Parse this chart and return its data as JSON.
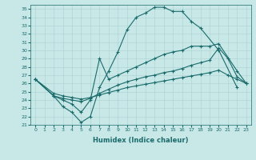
{
  "xlabel": "Humidex (Indice chaleur)",
  "ylabel": "",
  "xlim": [
    -0.5,
    23.5
  ],
  "ylim": [
    21,
    35.5
  ],
  "xticks": [
    0,
    1,
    2,
    3,
    4,
    5,
    6,
    7,
    8,
    9,
    10,
    11,
    12,
    13,
    14,
    15,
    16,
    17,
    18,
    19,
    20,
    21,
    22,
    23
  ],
  "yticks": [
    21,
    22,
    23,
    24,
    25,
    26,
    27,
    28,
    29,
    30,
    31,
    32,
    33,
    34,
    35
  ],
  "bg_color": "#c8e8e8",
  "line_color": "#1a6b6b",
  "grid_color": "#b0d4d4",
  "lines": [
    {
      "x": [
        0,
        2,
        3,
        4,
        5,
        6,
        7,
        8,
        9,
        10,
        11,
        12,
        13,
        14,
        15,
        16,
        17,
        18,
        20,
        22
      ],
      "y": [
        26.5,
        24.5,
        23.2,
        22.5,
        21.3,
        22.0,
        25.5,
        27.5,
        29.8,
        32.5,
        34.0,
        34.5,
        35.2,
        35.2,
        34.7,
        34.7,
        33.5,
        32.7,
        30.0,
        25.5
      ]
    },
    {
      "x": [
        0,
        2,
        3,
        4,
        5,
        6,
        7,
        8,
        9,
        10,
        11,
        12,
        13,
        14,
        15,
        16,
        17,
        18,
        19,
        20,
        22,
        23
      ],
      "y": [
        26.5,
        24.5,
        24.0,
        23.5,
        22.5,
        24.0,
        29.0,
        26.5,
        27.0,
        27.5,
        28.0,
        28.5,
        29.0,
        29.5,
        29.8,
        30.0,
        30.5,
        30.5,
        30.5,
        30.8,
        27.5,
        26.0
      ]
    },
    {
      "x": [
        0,
        2,
        3,
        4,
        5,
        6,
        7,
        8,
        9,
        10,
        11,
        12,
        13,
        14,
        15,
        16,
        17,
        18,
        19,
        20,
        21,
        22,
        23
      ],
      "y": [
        26.5,
        24.5,
        24.2,
        24.0,
        23.8,
        24.2,
        24.8,
        25.3,
        25.8,
        26.2,
        26.5,
        26.8,
        27.0,
        27.3,
        27.5,
        27.8,
        28.2,
        28.5,
        28.8,
        30.3,
        29.0,
        26.8,
        26.0
      ]
    },
    {
      "x": [
        0,
        2,
        3,
        4,
        5,
        6,
        7,
        8,
        9,
        10,
        11,
        12,
        13,
        14,
        15,
        16,
        17,
        18,
        19,
        20,
        21,
        22,
        23
      ],
      "y": [
        26.5,
        24.8,
        24.5,
        24.3,
        24.1,
        24.3,
        24.6,
        24.9,
        25.2,
        25.5,
        25.7,
        25.9,
        26.1,
        26.3,
        26.5,
        26.7,
        26.9,
        27.1,
        27.3,
        27.6,
        27.0,
        26.5,
        26.0
      ]
    }
  ]
}
